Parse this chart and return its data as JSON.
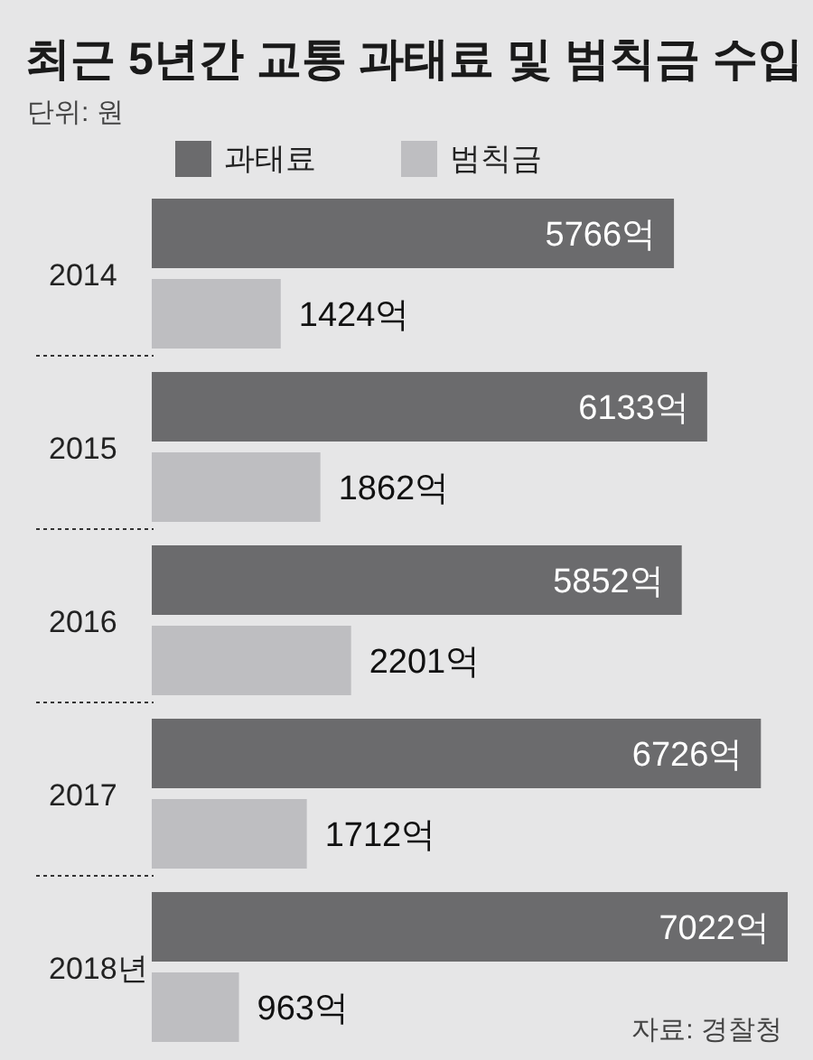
{
  "chart_data": {
    "type": "bar",
    "orientation": "horizontal",
    "title": "최근 5년간 교통 과태료 및 범칙금 수입",
    "subtitle": "단위: 원",
    "categories": [
      "2014",
      "2015",
      "2016",
      "2017",
      "2018년"
    ],
    "series": [
      {
        "name": "과태료",
        "color": "#6b6b6d",
        "values": [
          5766,
          6133,
          5852,
          6726,
          7022
        ],
        "value_labels": [
          "5766억",
          "6133억",
          "5852억",
          "6726억",
          "7022억"
        ]
      },
      {
        "name": "범칙금",
        "color": "#bebec1",
        "values": [
          1424,
          1862,
          2201,
          1712,
          963
        ],
        "value_labels": [
          "1424억",
          "1862억",
          "2201억",
          "1712억",
          "963억"
        ]
      }
    ],
    "legend": "top",
    "annotations": [
      "자료: 경찰청"
    ]
  }
}
